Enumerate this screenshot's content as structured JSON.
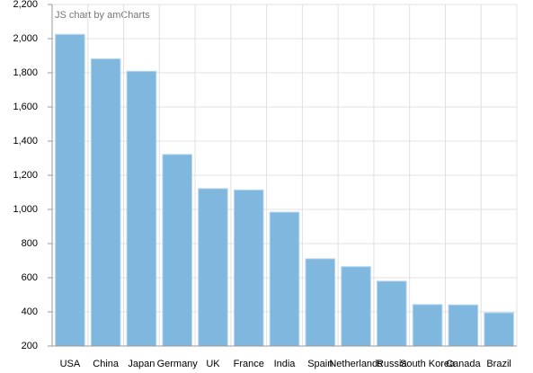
{
  "chart_data": {
    "type": "bar",
    "credit": "JS chart by amCharts",
    "categories": [
      "USA",
      "China",
      "Japan",
      "Germany",
      "UK",
      "France",
      "India",
      "Spain",
      "Netherlands",
      "Russia",
      "South Korea",
      "Canada",
      "Brazil"
    ],
    "values": [
      2025,
      1882,
      1809,
      1322,
      1122,
      1114,
      984,
      711,
      665,
      580,
      443,
      441,
      395
    ],
    "color": "#7fb7de",
    "ylim": [
      200,
      2200
    ],
    "yticks": [
      200,
      400,
      600,
      800,
      {
        "value": 1000,
        "label": "1,000"
      },
      {
        "value": 1200,
        "label": "1,200"
      },
      {
        "value": 1400,
        "label": "1,400"
      },
      {
        "value": 1600,
        "label": "1,600"
      },
      {
        "value": 1800,
        "label": "1,800"
      },
      {
        "value": 2000,
        "label": "2,000"
      },
      {
        "value": 2200,
        "label": "2,200"
      }
    ],
    "grid": true
  }
}
